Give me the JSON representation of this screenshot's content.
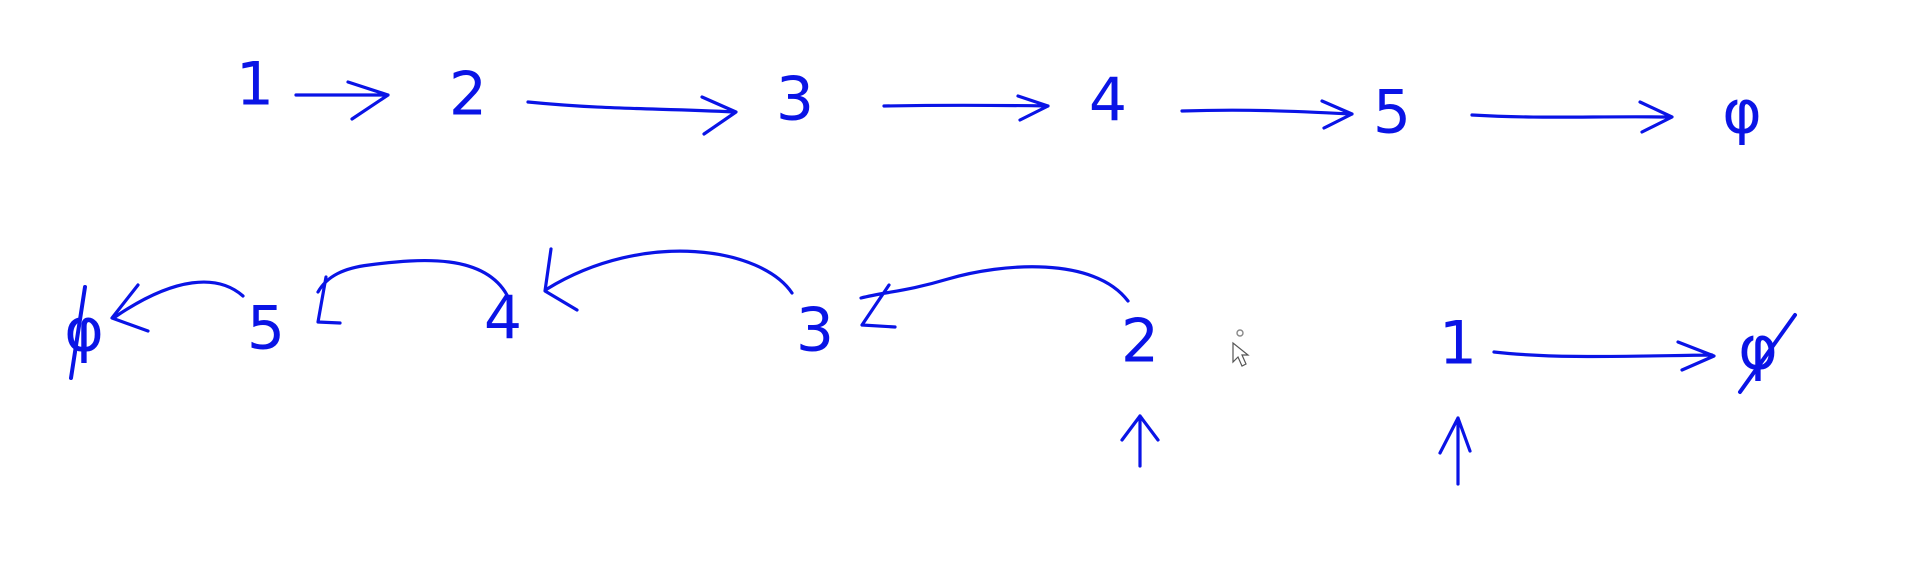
{
  "whiteboard": {
    "ink_color": "#0a14e6",
    "background": "#ffffff",
    "top_row": {
      "nodes": [
        "1",
        "2",
        "3",
        "4",
        "5",
        "φ"
      ],
      "arrow_direction": "right"
    },
    "bottom_row": {
      "reversed_nodes": [
        "φ",
        "5",
        "4",
        "3",
        "2"
      ],
      "remaining_nodes": [
        "1",
        "φ"
      ],
      "reversed_arrow_direction": "left",
      "remaining_arrow_direction": "right",
      "pointer_targets": [
        "2",
        "1"
      ]
    },
    "cursor_icon": "mouse-cursor-icon"
  }
}
